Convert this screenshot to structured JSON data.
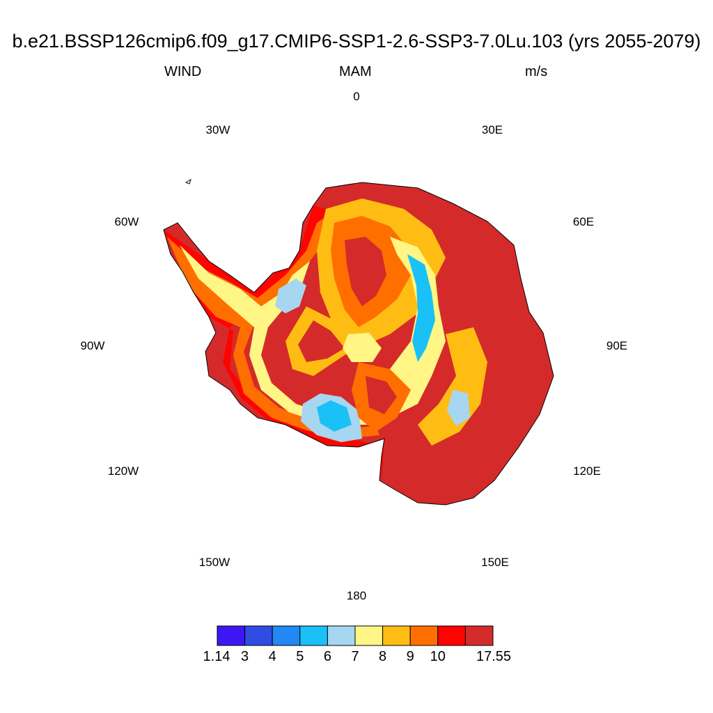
{
  "title": "b.e21.BSSP126cmip6.f09_g17.CMIP6-SSP1-2.6-SSP3-7.0Lu.103 (yrs 2055-2079)",
  "left_subtitle": "WIND",
  "center_subtitle": "MAM",
  "right_subtitle": "m/s",
  "longitude_labels": [
    "0",
    "30E",
    "60E",
    "90E",
    "120E",
    "150E",
    "180",
    "150W",
    "120W",
    "90W",
    "60W",
    "30W"
  ],
  "colorbar": {
    "colors": [
      "#3e16f4",
      "#2f4ce3",
      "#2188f4",
      "#19c1f7",
      "#a7d6f0",
      "#fff685",
      "#ffbd14",
      "#ff6f00",
      "#ff0300",
      "#d52a2a"
    ],
    "labels": [
      "1.14",
      "3",
      "4",
      "5",
      "6",
      "7",
      "8",
      "9",
      "10",
      "17.55"
    ]
  },
  "map": {
    "projection": "south polar stereographic",
    "variable": "WIND"
  }
}
